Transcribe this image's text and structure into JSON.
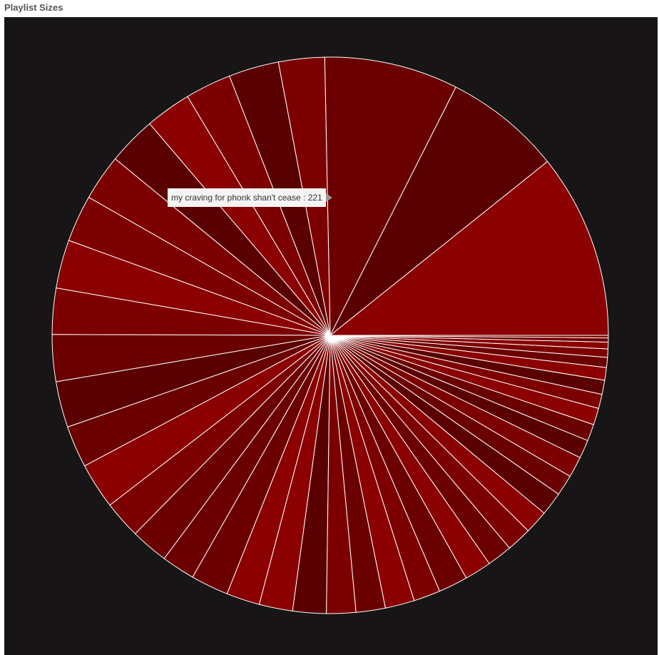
{
  "page": {
    "title": "Playlist Sizes"
  },
  "tooltip": {
    "label": "my craving for phonk shan't cease",
    "separator": " : ",
    "value": "221"
  },
  "colors": {
    "background": "#171515",
    "slice_stroke": "#ffffff",
    "slice_palette": [
      "#8b0000",
      "#7d0000",
      "#6b0000",
      "#5a0000"
    ]
  },
  "chart_data": {
    "type": "pie",
    "title": "Playlist Sizes",
    "start_angle_deg": 0,
    "direction": "counterclockwise-from-3-oclock",
    "values": [
      221,
      140,
      160,
      55,
      60,
      55,
      55,
      58,
      55,
      56,
      58,
      55,
      56,
      55,
      50,
      55,
      45,
      45,
      40,
      45,
      40,
      40,
      40,
      35,
      35,
      35,
      32,
      35,
      32,
      30,
      30,
      28,
      28,
      25,
      25,
      22,
      20,
      20,
      17,
      17,
      15,
      12,
      10,
      8,
      5,
      3
    ],
    "slice_colors": [
      "#8b0000",
      "#5a0000",
      "#6b0000",
      "#7d0000",
      "#5a0000",
      "#7d0000",
      "#8b0000",
      "#5a0000",
      "#7d0000",
      "#7d0000",
      "#8b0000",
      "#7d0000",
      "#6b0000",
      "#5a0000",
      "#6b0000",
      "#8b0000",
      "#7d0000",
      "#6b0000",
      "#6b0000",
      "#6b0000",
      "#8b0000",
      "#8b0000",
      "#5a0000",
      "#7d0000",
      "#6b0000",
      "#8b0000",
      "#7d0000",
      "#6b0000",
      "#8b0000",
      "#6b0000",
      "#7d0000",
      "#8b0000",
      "#5a0000",
      "#6b0000",
      "#7d0000",
      "#5a0000",
      "#6b0000",
      "#8b0000",
      "#7d0000",
      "#5a0000",
      "#8b0000",
      "#6b0000",
      "#7d0000",
      "#8b0000",
      "#6b0000",
      "#7d0000"
    ]
  }
}
